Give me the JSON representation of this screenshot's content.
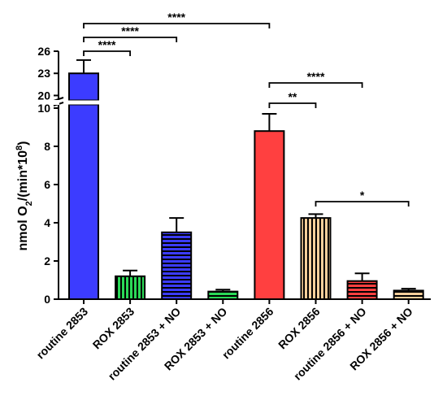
{
  "chart_data": {
    "type": "bar",
    "ylabel": {
      "main": "nmol O",
      "sub": "2",
      "mid": "/(min*10",
      "sup": "8",
      "end": ")"
    },
    "axis_break": {
      "lower": [
        0,
        10
      ],
      "upper": [
        19.5,
        26
      ]
    },
    "yticks_lower": [
      0,
      2,
      4,
      6,
      8,
      10
    ],
    "yticks_upper": [
      20,
      23,
      26
    ],
    "categories": [
      "routine 2853",
      "ROX 2853",
      "routine 2853 + NO",
      "ROX 2853 + NO",
      "routine 2856",
      "ROX 2856",
      "routine 2856 + NO",
      "ROX 2856 + NO"
    ],
    "values": [
      23.0,
      1.2,
      3.5,
      0.4,
      8.8,
      4.25,
      0.95,
      0.45
    ],
    "errors": [
      1.8,
      0.3,
      0.75,
      0.1,
      0.9,
      0.2,
      0.4,
      0.1
    ],
    "bar_styles": [
      {
        "fill": "#3c3cff",
        "pattern": "solid"
      },
      {
        "fill": "#2bd957",
        "pattern": "vertical"
      },
      {
        "fill": "#3c3cff",
        "pattern": "horizontal"
      },
      {
        "fill": "#2bd957",
        "pattern": "horizontal"
      },
      {
        "fill": "#ff4040",
        "pattern": "solid"
      },
      {
        "fill": "#f7cf9b",
        "pattern": "vertical"
      },
      {
        "fill": "#ff4040",
        "pattern": "horizontal"
      },
      {
        "fill": "#f7cf9b",
        "pattern": "horizontal"
      }
    ],
    "significance": [
      {
        "from": 0,
        "to": 1,
        "label": "****"
      },
      {
        "from": 0,
        "to": 2,
        "label": "****"
      },
      {
        "from": 0,
        "to": 4,
        "label": "****"
      },
      {
        "from": 4,
        "to": 5,
        "label": "**"
      },
      {
        "from": 4,
        "to": 6,
        "label": "****"
      },
      {
        "from": 5,
        "to": 7,
        "label": "*"
      }
    ]
  }
}
